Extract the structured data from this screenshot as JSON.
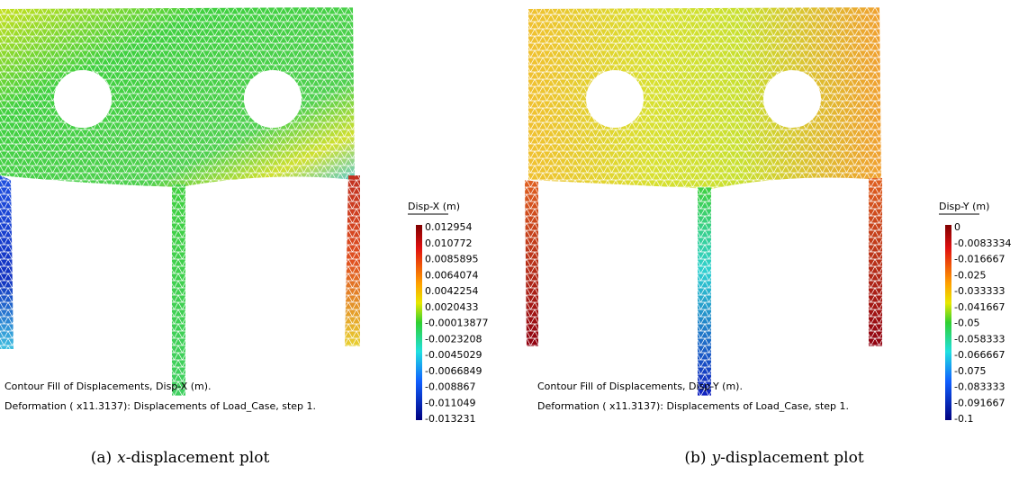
{
  "panels": [
    {
      "legend_title": "Disp-X (m)",
      "legend_labels": [
        "0.012954",
        "0.010772",
        "0.0085895",
        "0.0064074",
        "0.0042254",
        "0.0020433",
        "-0.00013877",
        "-0.0023208",
        "-0.0045029",
        "-0.0066849",
        "-0.008867",
        "-0.011049",
        "-0.013231"
      ],
      "footer": [
        "Contour Fill of Displacements, Disp-X (m).",
        "Deformation ( x11.3137): Displacements of Load_Case, step 1."
      ],
      "caption": {
        "label": "(a)",
        "variable": "x",
        "text": "-displacement plot"
      }
    },
    {
      "legend_title": "Disp-Y (m)",
      "legend_labels": [
        "0",
        "-0.0083334",
        "-0.016667",
        "-0.025",
        "-0.033333",
        "-0.041667",
        "-0.05",
        "-0.058333",
        "-0.066667",
        "-0.075",
        "-0.083333",
        "-0.091667",
        "-0.1"
      ],
      "footer": [
        "Contour Fill of Displacements, Disp-Y (m).",
        "Deformation ( x11.3137): Displacements of Load_Case, step 1."
      ],
      "caption": {
        "label": "(b)",
        "variable": "y",
        "text": "-displacement plot"
      }
    }
  ]
}
